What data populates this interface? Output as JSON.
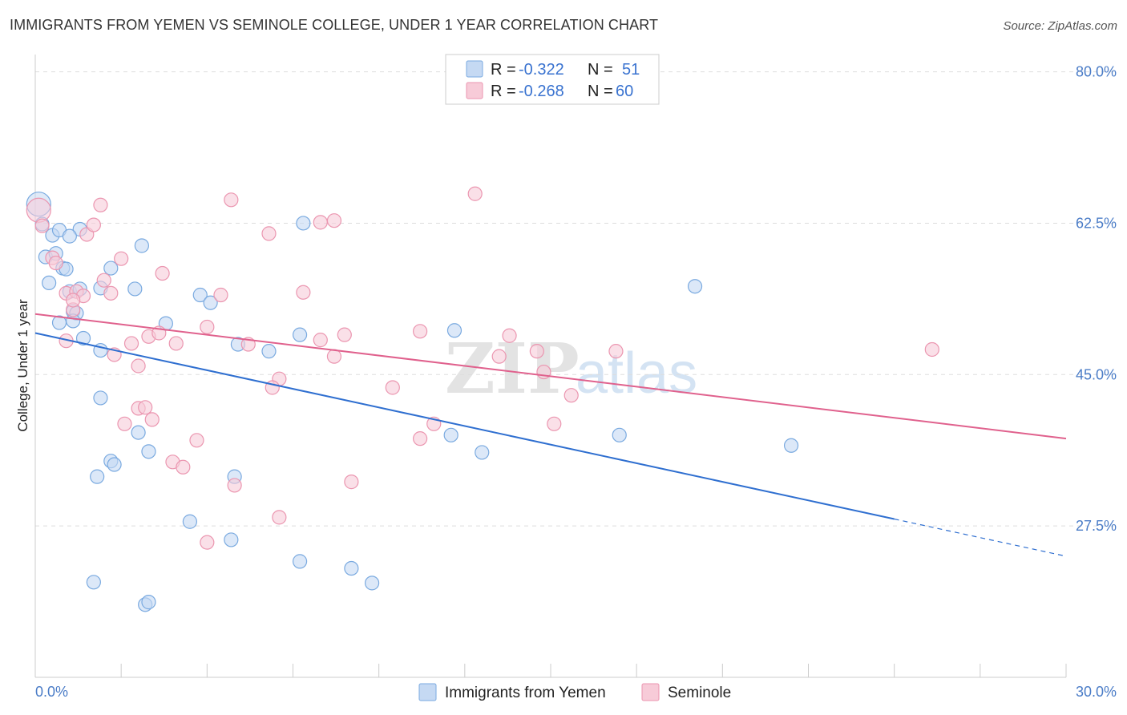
{
  "chart_data": {
    "type": "scatter",
    "title": "IMMIGRANTS FROM YEMEN VS SEMINOLE COLLEGE, UNDER 1 YEAR CORRELATION CHART",
    "source": "Source: ZipAtlas.com",
    "xlabel": "",
    "ylabel": "College, Under 1 year",
    "xlim": [
      0,
      30
    ],
    "ylim": [
      10,
      82
    ],
    "x_tick_labels": [
      "0.0%",
      "30.0%"
    ],
    "y_ticks": [
      27.5,
      45.0,
      62.5,
      80.0
    ],
    "y_tick_labels": [
      "27.5%",
      "45.0%",
      "62.5%",
      "80.0%"
    ],
    "watermark": "ZIPatlas",
    "legend": {
      "rows": [
        {
          "r_label": "R = ",
          "r_value": "-0.322",
          "n_label": "N = ",
          "n_value": "51"
        },
        {
          "r_label": "R = ",
          "r_value": "-0.268",
          "n_label": "N = ",
          "n_value": "60"
        }
      ]
    },
    "series": [
      {
        "name": "Immigrants from Yemen",
        "color": "#7aaae0",
        "fill": "#c5d9f3",
        "line_color": "#2f6fd0",
        "trend": {
          "x0": 0,
          "y0": 49.8,
          "x1": 25.0,
          "y1": 28.3,
          "dash_to_x": 30,
          "dash_to_y": 24.0
        },
        "points": [
          [
            0.1,
            64.7
          ],
          [
            0.2,
            62.4
          ],
          [
            0.3,
            58.6
          ],
          [
            0.5,
            61.1
          ],
          [
            0.7,
            61.7
          ],
          [
            0.4,
            55.6
          ],
          [
            0.6,
            59.0
          ],
          [
            0.8,
            57.3
          ],
          [
            0.9,
            57.2
          ],
          [
            1.0,
            54.6
          ],
          [
            1.1,
            52.3
          ],
          [
            1.2,
            52.1
          ],
          [
            1.3,
            54.9
          ],
          [
            0.7,
            51.0
          ],
          [
            1.1,
            51.2
          ],
          [
            1.4,
            49.2
          ],
          [
            1.9,
            55.0
          ],
          [
            2.2,
            57.3
          ],
          [
            2.9,
            54.9
          ],
          [
            3.1,
            59.9
          ],
          [
            1.3,
            61.8
          ],
          [
            3.8,
            50.9
          ],
          [
            4.8,
            54.2
          ],
          [
            5.1,
            53.3
          ],
          [
            5.9,
            48.5
          ],
          [
            6.8,
            47.7
          ],
          [
            7.7,
            49.6
          ],
          [
            7.8,
            62.5
          ],
          [
            1.9,
            47.8
          ],
          [
            1.9,
            42.3
          ],
          [
            2.2,
            35.0
          ],
          [
            2.3,
            34.6
          ],
          [
            1.8,
            33.2
          ],
          [
            3.0,
            38.3
          ],
          [
            3.3,
            36.1
          ],
          [
            4.5,
            28.0
          ],
          [
            5.8,
            33.2
          ],
          [
            5.7,
            25.9
          ],
          [
            7.7,
            23.4
          ],
          [
            9.2,
            22.6
          ],
          [
            9.8,
            20.9
          ],
          [
            1.7,
            21.0
          ],
          [
            3.2,
            18.4
          ],
          [
            3.3,
            18.7
          ],
          [
            12.2,
            50.1
          ],
          [
            12.1,
            38.0
          ],
          [
            13.0,
            36.0
          ],
          [
            17.0,
            38.0
          ],
          [
            19.2,
            55.2
          ],
          [
            22.0,
            36.8
          ],
          [
            1.0,
            61.0
          ]
        ]
      },
      {
        "name": "Seminole",
        "color": "#eb96b0",
        "fill": "#f7cbd8",
        "line_color": "#e0618d",
        "trend": {
          "x0": 0,
          "y0": 52.0,
          "x1": 30,
          "y1": 37.6
        },
        "points": [
          [
            0.1,
            64.0
          ],
          [
            0.2,
            62.2
          ],
          [
            0.5,
            58.5
          ],
          [
            0.6,
            57.9
          ],
          [
            0.9,
            54.4
          ],
          [
            1.1,
            52.5
          ],
          [
            1.2,
            54.6
          ],
          [
            1.4,
            54.1
          ],
          [
            1.5,
            61.2
          ],
          [
            1.7,
            62.3
          ],
          [
            1.9,
            64.6
          ],
          [
            2.0,
            55.9
          ],
          [
            2.2,
            54.4
          ],
          [
            2.5,
            58.4
          ],
          [
            3.3,
            49.4
          ],
          [
            3.7,
            56.7
          ],
          [
            0.9,
            48.9
          ],
          [
            2.3,
            47.3
          ],
          [
            2.8,
            48.6
          ],
          [
            3.0,
            46.0
          ],
          [
            4.1,
            48.6
          ],
          [
            5.0,
            50.5
          ],
          [
            5.4,
            54.2
          ],
          [
            6.2,
            48.5
          ],
          [
            3.0,
            41.1
          ],
          [
            3.2,
            41.2
          ],
          [
            3.4,
            39.8
          ],
          [
            2.6,
            39.3
          ],
          [
            4.7,
            37.4
          ],
          [
            4.0,
            34.9
          ],
          [
            4.3,
            34.3
          ],
          [
            5.7,
            65.2
          ],
          [
            6.8,
            61.3
          ],
          [
            7.1,
            44.5
          ],
          [
            6.9,
            43.5
          ],
          [
            7.8,
            54.5
          ],
          [
            8.3,
            49.0
          ],
          [
            8.7,
            47.1
          ],
          [
            9.0,
            49.6
          ],
          [
            8.3,
            62.6
          ],
          [
            5.8,
            32.2
          ],
          [
            9.2,
            32.6
          ],
          [
            7.1,
            28.5
          ],
          [
            5.0,
            25.6
          ],
          [
            10.4,
            43.5
          ],
          [
            11.2,
            50.0
          ],
          [
            11.2,
            37.6
          ],
          [
            11.6,
            39.3
          ],
          [
            12.8,
            65.9
          ],
          [
            13.5,
            47.1
          ],
          [
            13.8,
            49.5
          ],
          [
            14.6,
            47.7
          ],
          [
            14.8,
            45.3
          ],
          [
            15.6,
            42.6
          ],
          [
            15.1,
            39.3
          ],
          [
            16.9,
            47.7
          ],
          [
            26.1,
            47.9
          ],
          [
            8.7,
            62.8
          ],
          [
            3.6,
            49.8
          ],
          [
            1.1,
            53.6
          ]
        ]
      }
    ]
  }
}
